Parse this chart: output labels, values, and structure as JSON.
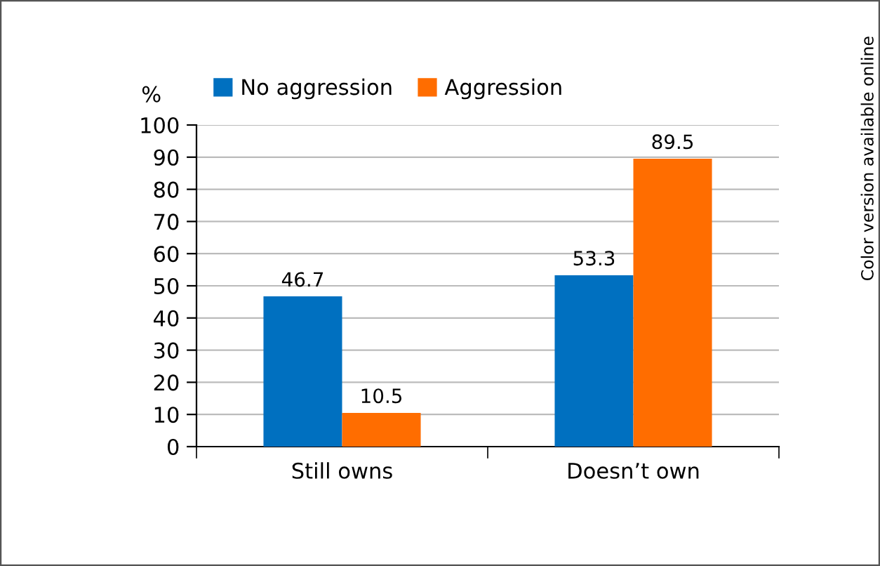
{
  "chart_data": {
    "type": "bar",
    "ylabel": "%",
    "categories": [
      "Still owns",
      "Doesn’t own"
    ],
    "series": [
      {
        "name": "No aggression",
        "color": "#0070c0",
        "values": [
          46.7,
          53.3
        ]
      },
      {
        "name": "Aggression",
        "color": "#ff6d00",
        "values": [
          10.5,
          89.5
        ]
      }
    ],
    "ylim": [
      0,
      100
    ],
    "yticks": [
      0,
      10,
      20,
      30,
      40,
      50,
      60,
      70,
      80,
      90,
      100
    ],
    "grid": "y",
    "legend": "top",
    "data_labels": true,
    "annotations": [
      "Color version available online"
    ]
  }
}
